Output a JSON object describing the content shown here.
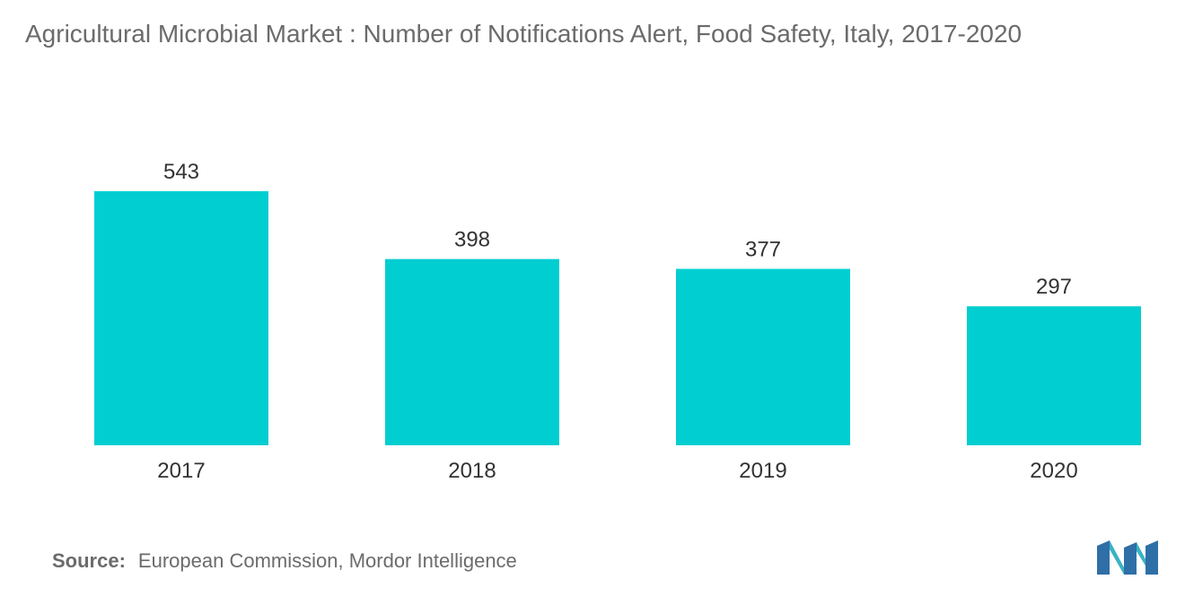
{
  "title": "Agricultural Microbial Market : Number of Notifications Alert, Food Safety, Italy, 2017-2020",
  "source": {
    "label": "Source:",
    "text": "European Commission, Mordor Intelligence"
  },
  "logo_icon": "mordor-intelligence-logo-icon",
  "colors": {
    "bar": "#00ced1",
    "label_text": "#333333",
    "title_text": "#6b6b6b"
  },
  "chart_data": {
    "type": "bar",
    "title": "Agricultural Microbial Market : Number of Notifications Alert, Food Safety, Italy, 2017-2020",
    "categories": [
      "2017",
      "2018",
      "2019",
      "2020"
    ],
    "values": [
      543,
      398,
      377,
      297
    ],
    "xlabel": "",
    "ylabel": "",
    "ylim": [
      0,
      543
    ],
    "grid": false,
    "legend": "none",
    "data_labels": true
  }
}
